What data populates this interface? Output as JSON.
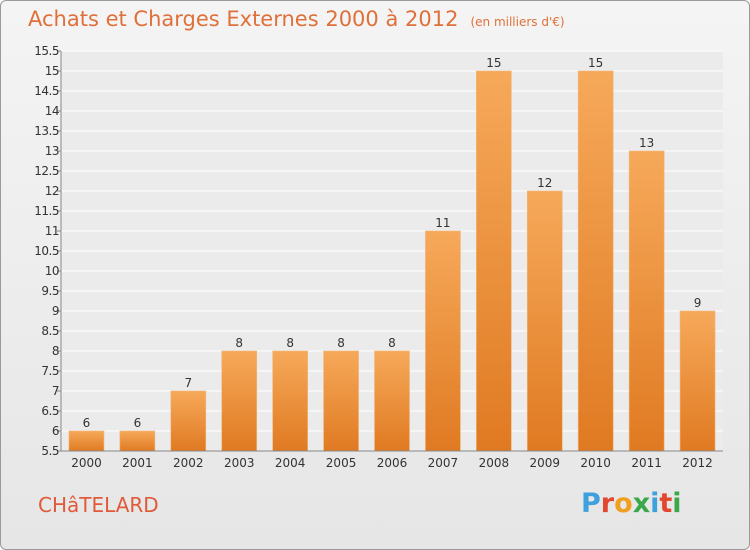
{
  "header": {
    "title": "Achats et Charges Externes 2000 à 2012",
    "unit": "(en milliers d'€)"
  },
  "footer": {
    "commune": "CHâTELARD",
    "logo": "Proxiti"
  },
  "colors": {
    "bar_top": "#f6a95a",
    "bar_bottom": "#e07a22",
    "title": "#e0703a",
    "logo_letters": [
      "#3ea0dc",
      "#e2472f",
      "#f0a020",
      "#3aa84a",
      "#3ea0dc",
      "#e2472f",
      "#3aa84a"
    ]
  },
  "chart_data": {
    "type": "bar",
    "title": "Achats et Charges Externes 2000 à 2012",
    "subtitle": "(en milliers d'€)",
    "categories": [
      "2000",
      "2001",
      "2002",
      "2003",
      "2004",
      "2005",
      "2006",
      "2007",
      "2008",
      "2009",
      "2010",
      "2011",
      "2012"
    ],
    "values": [
      6,
      6,
      7,
      8,
      8,
      8,
      8,
      11,
      15,
      12,
      15,
      13,
      9
    ],
    "value_labels": [
      "6",
      "6",
      "7",
      "8",
      "8",
      "8",
      "8",
      "11",
      "15",
      "12",
      "15",
      "13",
      "9"
    ],
    "ylim": [
      5.5,
      15.5
    ],
    "yticks": [
      "5.5",
      "6",
      "6.5",
      "7",
      "7.5",
      "8",
      "8.5",
      "9",
      "9.5",
      "10",
      "10.5",
      "11",
      "11.5",
      "12",
      "12.5",
      "13",
      "13.5",
      "14",
      "14.5",
      "15",
      "15.5"
    ],
    "grid": true,
    "xlabel": "",
    "ylabel": ""
  }
}
